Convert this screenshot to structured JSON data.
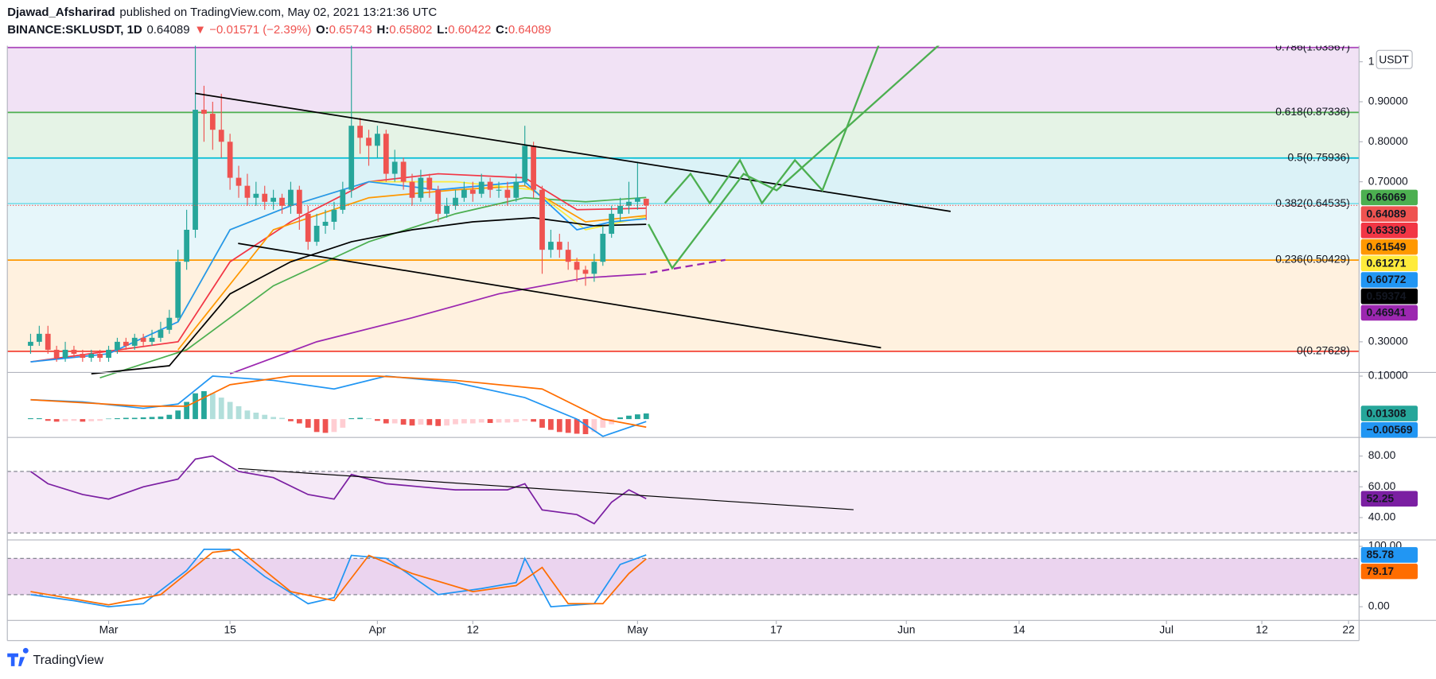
{
  "header": {
    "author": "Djawad_Afsharirad",
    "published": "published on TradingView.com, May 02, 2021 13:21:36 UTC",
    "symbol": "BINANCE:SKLUSDT, 1D",
    "change": "▼ −0.01571 (−2.39%)",
    "ohlc_labels": [
      "O:",
      "H:",
      "L:",
      "C:"
    ],
    "currency": "USDT"
  },
  "footer": {
    "brand": "TradingView"
  },
  "chart_data": [
    {
      "type": "candlestick",
      "up_color": "#26a69a",
      "down_color": "#ef5350",
      "xlim": [
        "2021-02-17",
        "2021-07-23"
      ],
      "xticks": [
        {
          "value": "2021-03-01",
          "label": "Mar"
        },
        {
          "value": "2021-03-15",
          "label": "15"
        },
        {
          "value": "2021-04-01",
          "label": "Apr"
        },
        {
          "value": "2021-04-12",
          "label": "12"
        },
        {
          "value": "2021-05-01",
          "label": "May"
        },
        {
          "value": "2021-05-17",
          "label": "17"
        },
        {
          "value": "2021-06-01",
          "label": "Jun"
        },
        {
          "value": "2021-06-14",
          "label": "14"
        },
        {
          "value": "2021-07-01",
          "label": "Jul"
        },
        {
          "value": "2021-07-12",
          "label": "12"
        },
        {
          "value": "2021-07-22",
          "label": "22"
        }
      ],
      "ylim": [
        0.2234,
        1.04
      ],
      "yticks": [
        1,
        {
          "value": 0.9,
          "label": "0.90000"
        },
        {
          "value": 0.8,
          "label": "0.80000"
        },
        {
          "value": 0.7,
          "label": "0.70000"
        },
        {
          "value": 0.3,
          "label": "0.30000"
        }
      ],
      "x": [
        "2021-02-20",
        "2021-02-21",
        "2021-02-22",
        "2021-02-23",
        "2021-02-24",
        "2021-02-25",
        "2021-02-26",
        "2021-02-27",
        "2021-02-28",
        "2021-03-01",
        "2021-03-02",
        "2021-03-03",
        "2021-03-04",
        "2021-03-05",
        "2021-03-06",
        "2021-03-07",
        "2021-03-08",
        "2021-03-09",
        "2021-03-10",
        "2021-03-11",
        "2021-03-12",
        "2021-03-13",
        "2021-03-14",
        "2021-03-15",
        "2021-03-16",
        "2021-03-17",
        "2021-03-18",
        "2021-03-19",
        "2021-03-20",
        "2021-03-21",
        "2021-03-22",
        "2021-03-23",
        "2021-03-24",
        "2021-03-25",
        "2021-03-26",
        "2021-03-27",
        "2021-03-28",
        "2021-03-29",
        "2021-03-30",
        "2021-03-31",
        "2021-04-01",
        "2021-04-02",
        "2021-04-03",
        "2021-04-04",
        "2021-04-05",
        "2021-04-06",
        "2021-04-07",
        "2021-04-08",
        "2021-04-09",
        "2021-04-10",
        "2021-04-11",
        "2021-04-12",
        "2021-04-13",
        "2021-04-14",
        "2021-04-15",
        "2021-04-16",
        "2021-04-17",
        "2021-04-18",
        "2021-04-19",
        "2021-04-20",
        "2021-04-21",
        "2021-04-22",
        "2021-04-23",
        "2021-04-24",
        "2021-04-25",
        "2021-04-26",
        "2021-04-27",
        "2021-04-28",
        "2021-04-29",
        "2021-04-30",
        "2021-05-01",
        "2021-05-02"
      ],
      "open": [
        0.29,
        0.3,
        0.32,
        0.28,
        0.26,
        0.28,
        0.27,
        0.26,
        0.27,
        0.26,
        0.28,
        0.3,
        0.29,
        0.31,
        0.3,
        0.31,
        0.33,
        0.36,
        0.5,
        0.58,
        0.88,
        0.87,
        0.83,
        0.8,
        0.71,
        0.69,
        0.66,
        0.67,
        0.65,
        0.66,
        0.64,
        0.68,
        0.62,
        0.55,
        0.59,
        0.6,
        0.63,
        0.68,
        0.84,
        0.81,
        0.79,
        0.82,
        0.72,
        0.75,
        0.7,
        0.66,
        0.71,
        0.68,
        0.62,
        0.64,
        0.66,
        0.68,
        0.67,
        0.7,
        0.68,
        0.68,
        0.66,
        0.7,
        0.79,
        0.68,
        0.53,
        0.55,
        0.53,
        0.5,
        0.48,
        0.47,
        0.5,
        0.57,
        0.62,
        0.64,
        0.65,
        0.65743
      ],
      "high": [
        0.32,
        0.34,
        0.34,
        0.29,
        0.3,
        0.29,
        0.28,
        0.28,
        0.28,
        0.29,
        0.31,
        0.31,
        0.32,
        0.32,
        0.33,
        0.35,
        0.38,
        0.53,
        0.63,
        1.04,
        0.94,
        0.9,
        0.92,
        0.82,
        0.74,
        0.72,
        0.7,
        0.69,
        0.68,
        0.67,
        0.7,
        0.69,
        0.64,
        0.62,
        0.63,
        0.65,
        0.7,
        1.04,
        0.86,
        0.83,
        0.84,
        0.83,
        0.78,
        0.76,
        0.72,
        0.73,
        0.72,
        0.69,
        0.66,
        0.68,
        0.7,
        0.7,
        0.72,
        0.71,
        0.7,
        0.7,
        0.72,
        0.84,
        0.8,
        0.69,
        0.58,
        0.57,
        0.55,
        0.51,
        0.49,
        0.52,
        0.59,
        0.64,
        0.66,
        0.7,
        0.75,
        0.65802
      ],
      "low": [
        0.27,
        0.29,
        0.27,
        0.25,
        0.25,
        0.26,
        0.25,
        0.25,
        0.25,
        0.25,
        0.27,
        0.28,
        0.28,
        0.29,
        0.29,
        0.3,
        0.32,
        0.35,
        0.48,
        0.56,
        0.8,
        0.78,
        0.76,
        0.68,
        0.66,
        0.64,
        0.64,
        0.63,
        0.63,
        0.62,
        0.62,
        0.58,
        0.53,
        0.54,
        0.57,
        0.58,
        0.62,
        0.66,
        0.77,
        0.74,
        0.76,
        0.7,
        0.7,
        0.68,
        0.64,
        0.65,
        0.66,
        0.6,
        0.61,
        0.63,
        0.65,
        0.65,
        0.66,
        0.66,
        0.66,
        0.64,
        0.65,
        0.69,
        0.66,
        0.47,
        0.51,
        0.51,
        0.48,
        0.45,
        0.44,
        0.45,
        0.49,
        0.56,
        0.6,
        0.62,
        0.63,
        0.60422
      ],
      "close": [
        0.3,
        0.32,
        0.28,
        0.26,
        0.28,
        0.27,
        0.26,
        0.27,
        0.26,
        0.28,
        0.3,
        0.29,
        0.31,
        0.3,
        0.31,
        0.33,
        0.36,
        0.5,
        0.58,
        0.88,
        0.87,
        0.83,
        0.8,
        0.71,
        0.69,
        0.66,
        0.67,
        0.65,
        0.66,
        0.64,
        0.68,
        0.62,
        0.55,
        0.59,
        0.6,
        0.63,
        0.68,
        0.84,
        0.81,
        0.79,
        0.82,
        0.72,
        0.75,
        0.7,
        0.66,
        0.71,
        0.68,
        0.62,
        0.64,
        0.66,
        0.68,
        0.67,
        0.7,
        0.68,
        0.68,
        0.66,
        0.7,
        0.79,
        0.68,
        0.53,
        0.55,
        0.53,
        0.5,
        0.48,
        0.47,
        0.5,
        0.57,
        0.62,
        0.64,
        0.65,
        0.66,
        0.64089
      ],
      "fib": [
        {
          "value": 1.03567,
          "label": "0.786(1.03567)",
          "color": "#ab47bc",
          "fill": "#f1e2f5"
        },
        {
          "value": 0.87336,
          "label": "0.618(0.87336)",
          "color": "#4caf50",
          "fill": "#e5f3e6"
        },
        {
          "value": 0.75936,
          "label": "0.5(0.75936)",
          "color": "#00bcd4",
          "fill": "#dbf2f7"
        },
        {
          "value": 0.64535,
          "label": "0.382(0.64535)",
          "color": "#80deea",
          "fill": "#e6f6fa"
        },
        {
          "value": 0.50429,
          "label": "0.236(0.50429)",
          "color": "#ff9800",
          "fill": "#fff1df"
        },
        {
          "value": 0.27628,
          "label": "0(0.27628)",
          "color": "#f44336"
        }
      ],
      "series": [
        {
          "color": "#4caf50",
          "tag": true,
          "x": [
            "2021-02-28",
            "2021-03-10",
            "2021-03-20",
            "2021-03-31",
            "2021-04-10",
            "2021-04-18",
            "2021-04-25",
            "2021-05-02"
          ],
          "values": [
            0.21,
            0.28,
            0.44,
            0.55,
            0.62,
            0.66,
            0.65,
            0.66069
          ]
        },
        {
          "color": "#f23645",
          "tag": true,
          "x": [
            "2021-02-20",
            "2021-03-09",
            "2021-03-15",
            "2021-03-22",
            "2021-03-31",
            "2021-04-08",
            "2021-04-18",
            "2021-04-24",
            "2021-05-02"
          ],
          "values": [
            0.25,
            0.3,
            0.5,
            0.6,
            0.7,
            0.72,
            0.71,
            0.63,
            0.63399
          ]
        },
        {
          "color": "#ff9800",
          "tag": true,
          "x": [
            "2021-03-09",
            "2021-03-20",
            "2021-03-31",
            "2021-04-10",
            "2021-04-18",
            "2021-04-25",
            "2021-05-02"
          ],
          "values": [
            0.28,
            0.58,
            0.66,
            0.68,
            0.69,
            0.6,
            0.61549
          ]
        },
        {
          "color": "#ffeb3b",
          "tag": true,
          "x": [
            "2021-03-09",
            "2021-03-15",
            "2021-03-22",
            "2021-03-31",
            "2021-04-10",
            "2021-04-19",
            "2021-04-25",
            "2021-05-02"
          ],
          "values": [
            0.35,
            0.58,
            0.64,
            0.7,
            0.7,
            0.68,
            0.58,
            0.61271
          ]
        },
        {
          "color": "#2196f3",
          "tag": true,
          "x": [
            "2021-02-20",
            "2021-03-01",
            "2021-03-09",
            "2021-03-15",
            "2021-03-22",
            "2021-03-31",
            "2021-04-08",
            "2021-04-18",
            "2021-04-24",
            "2021-04-28",
            "2021-05-02"
          ],
          "values": [
            0.25,
            0.27,
            0.35,
            0.58,
            0.64,
            0.7,
            0.68,
            0.7,
            0.58,
            0.6,
            0.60772
          ]
        },
        {
          "color": "#000000",
          "tag": true,
          "x": [
            "2021-02-27",
            "2021-03-08",
            "2021-03-15",
            "2021-03-22",
            "2021-03-29",
            "2021-04-05",
            "2021-04-12",
            "2021-04-19",
            "2021-04-26",
            "2021-05-02"
          ],
          "values": [
            0.22,
            0.24,
            0.42,
            0.5,
            0.55,
            0.58,
            0.6,
            0.61,
            0.59,
            0.59374
          ]
        },
        {
          "color": "#9c27b0",
          "tag": true,
          "x": [
            "2021-03-15",
            "2021-03-25",
            "2021-04-05",
            "2021-04-15",
            "2021-04-25",
            "2021-05-02"
          ],
          "values": [
            0.22,
            0.3,
            0.36,
            0.42,
            0.46,
            0.46941
          ]
        }
      ]
    },
    {
      "type": "macd",
      "ylim": [
        -0.0426,
        0.1085
      ],
      "yticks": [
        {
          "value": 0.1,
          "label": "0.10000"
        }
      ],
      "hist_colors": [
        "#26a69a",
        "#b2dfdb",
        "#ffcdd2",
        "#ef5350"
      ],
      "tag": true,
      "values": [
        0.002,
        0.002,
        -0.004,
        -0.006,
        -0.005,
        -0.004,
        -0.006,
        -0.005,
        -0.004,
        0.001,
        0.002,
        0.003,
        0.003,
        0.004,
        0.005,
        0.006,
        0.01,
        0.02,
        0.04,
        0.06,
        0.065,
        0.06,
        0.05,
        0.04,
        0.03,
        0.02,
        0.015,
        0.01,
        0.005,
        0.003,
        -0.005,
        -0.01,
        -0.02,
        -0.03,
        -0.032,
        -0.03,
        -0.02,
        0.002,
        0.003,
        0.002,
        -0.004,
        -0.01,
        -0.01,
        -0.013,
        -0.015,
        -0.013,
        -0.014,
        -0.016,
        -0.015,
        -0.012,
        -0.01,
        -0.01,
        -0.008,
        -0.009,
        -0.008,
        -0.008,
        -0.007,
        -0.004,
        -0.006,
        -0.02,
        -0.025,
        -0.03,
        -0.032,
        -0.034,
        -0.035,
        -0.03,
        -0.02,
        -0.012,
        0.004,
        0.008,
        0.011,
        0.01308
      ],
      "series": [
        {
          "color": "#2196f3",
          "tag": true,
          "x": [
            "2021-02-20",
            "2021-02-26",
            "2021-03-05",
            "2021-03-09",
            "2021-03-13",
            "2021-03-20",
            "2021-03-27",
            "2021-04-02",
            "2021-04-10",
            "2021-04-18",
            "2021-04-24",
            "2021-04-27",
            "2021-05-02"
          ],
          "values": [
            0.045,
            0.04,
            0.025,
            0.035,
            0.1,
            0.09,
            0.07,
            0.1,
            0.085,
            0.05,
            0.0,
            -0.04,
            -0.00569
          ],
          "value_labels": {
            "12": "−0.00569"
          }
        },
        {
          "color": "#ff6d00",
          "x": [
            "2021-02-20",
            "2021-03-05",
            "2021-03-10",
            "2021-03-15",
            "2021-03-22",
            "2021-04-01",
            "2021-04-10",
            "2021-04-20",
            "2021-04-27",
            "2021-05-02"
          ],
          "values": [
            0.045,
            0.03,
            0.03,
            0.08,
            0.1,
            0.1,
            0.09,
            0.07,
            0.0,
            -0.0187
          ]
        }
      ]
    },
    {
      "type": "line",
      "ylim": [
        25.5,
        92.1
      ],
      "yticks": [
        {
          "value": 80,
          "label": "80.00"
        },
        {
          "value": 60,
          "label": "60.00"
        },
        {
          "value": 40,
          "label": "40.00"
        }
      ],
      "band": [
        30,
        70
      ],
      "band_fill": "rgba(156,39,176,0.10)",
      "series": [
        {
          "color": "#7b1fa2",
          "tag": true,
          "x": [
            "2021-02-20",
            "2021-02-22",
            "2021-02-26",
            "2021-03-01",
            "2021-03-05",
            "2021-03-09",
            "2021-03-11",
            "2021-03-13",
            "2021-03-16",
            "2021-03-20",
            "2021-03-24",
            "2021-03-27",
            "2021-03-29",
            "2021-04-02",
            "2021-04-06",
            "2021-04-10",
            "2021-04-16",
            "2021-04-18",
            "2021-04-20",
            "2021-04-24",
            "2021-04-26",
            "2021-04-28",
            "2021-04-30",
            "2021-05-02"
          ],
          "values": [
            70,
            62,
            55,
            52,
            60,
            65,
            78,
            80,
            70,
            66,
            55,
            52,
            68,
            62,
            60,
            58,
            58,
            62,
            45,
            42,
            36,
            50,
            58,
            52.25
          ]
        }
      ]
    },
    {
      "type": "line",
      "ylim": [
        -22.7,
        110.6
      ],
      "yticks": [
        {
          "value": 100,
          "label": "100.00"
        },
        {
          "value": 0,
          "label": "0.00"
        }
      ],
      "band": [
        20,
        80
      ],
      "band_fill": "rgba(156,39,176,0.20)",
      "series": [
        {
          "color": "#2196f3",
          "tag": true,
          "x": [
            "2021-02-20",
            "2021-02-25",
            "2021-03-01",
            "2021-03-05",
            "2021-03-10",
            "2021-03-12",
            "2021-03-15",
            "2021-03-19",
            "2021-03-24",
            "2021-03-27",
            "2021-03-29",
            "2021-04-02",
            "2021-04-08",
            "2021-04-13",
            "2021-04-17",
            "2021-04-18",
            "2021-04-21",
            "2021-04-26",
            "2021-04-29",
            "2021-05-02"
          ],
          "values": [
            20,
            10,
            0,
            5,
            60,
            95,
            95,
            50,
            5,
            15,
            85,
            80,
            20,
            30,
            40,
            80,
            0,
            5,
            70,
            85.78
          ]
        },
        {
          "color": "#ff6d00",
          "tag": true,
          "x": [
            "2021-02-20",
            "2021-03-01",
            "2021-03-07",
            "2021-03-13",
            "2021-03-16",
            "2021-03-22",
            "2021-03-27",
            "2021-03-31",
            "2021-04-05",
            "2021-04-12",
            "2021-04-17",
            "2021-04-20",
            "2021-04-23",
            "2021-04-27",
            "2021-04-30",
            "2021-05-02"
          ],
          "values": [
            25,
            3,
            20,
            90,
            95,
            25,
            10,
            85,
            55,
            25,
            35,
            65,
            5,
            5,
            55,
            79.17
          ]
        }
      ]
    }
  ]
}
